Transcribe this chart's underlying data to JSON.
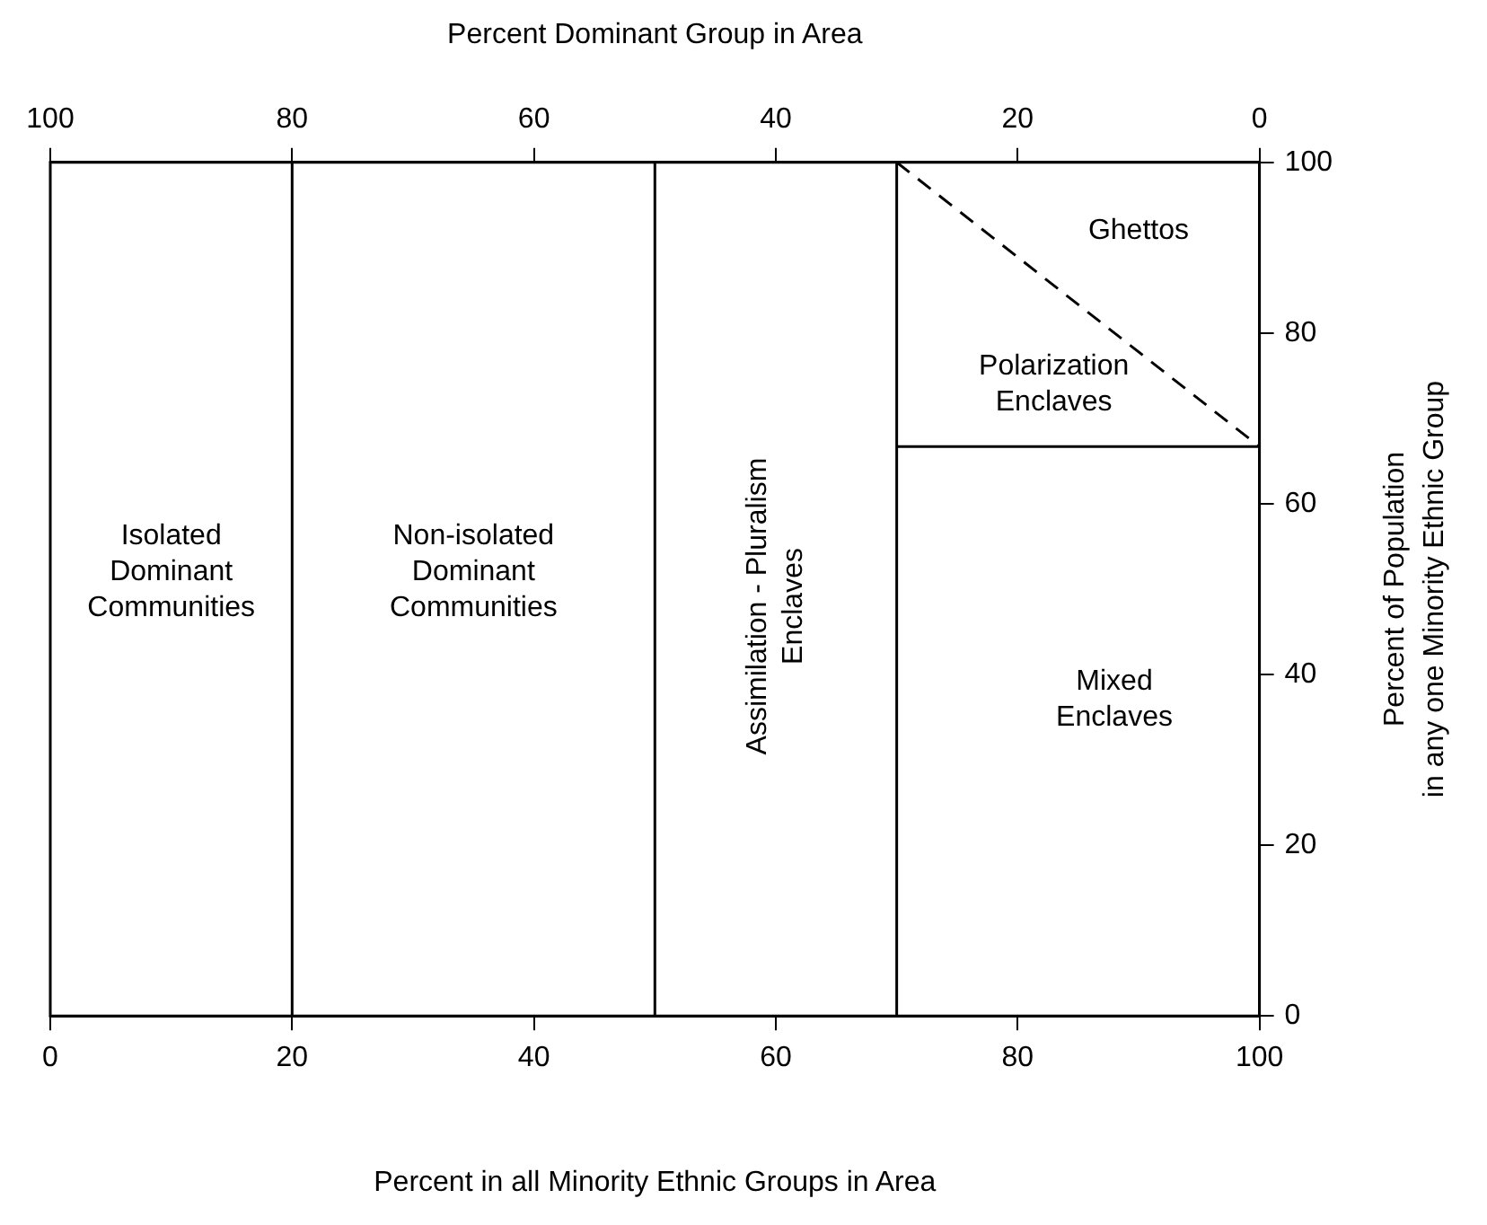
{
  "chart_data": {
    "type": "line",
    "xlabel": "Percent in all Minority Ethnic Groups in Area",
    "x2label": "Percent Dominant Group in Area",
    "ylabel": "Percent of Population\nin any one Minority Ethnic Group",
    "xlim": [
      0,
      100
    ],
    "xticks": [
      0,
      20,
      40,
      60,
      80,
      100
    ],
    "x2lim": [
      100,
      0
    ],
    "x2ticks": [
      100,
      80,
      60,
      40,
      20,
      0
    ],
    "ylim": [
      0,
      100
    ],
    "yticks": [
      0,
      20,
      40,
      60,
      80,
      100
    ],
    "grid": false,
    "legend": false,
    "marker": "none",
    "ref_lines": [
      {
        "axis": "x",
        "value": 20
      },
      {
        "axis": "x",
        "value": 50
      },
      {
        "axis": "x",
        "value": 70
      }
    ],
    "x": [
      70,
      100
    ],
    "series": [
      {
        "color": "#000000",
        "values": [
          66.7,
          66.7
        ],
        "line_style": "solid"
      },
      {
        "color": "#000000",
        "values": [
          100,
          66.7
        ],
        "line_style": "dashed"
      }
    ],
    "annotations": [
      "Isolated\nDominant\nCommunities",
      "Non-isolated\nDominant\nCommunities",
      "Assimilation - Pluralism\nEnclaves",
      "Ghettos",
      "Polarization\nEnclaves",
      "Mixed\nEnclaves"
    ]
  }
}
